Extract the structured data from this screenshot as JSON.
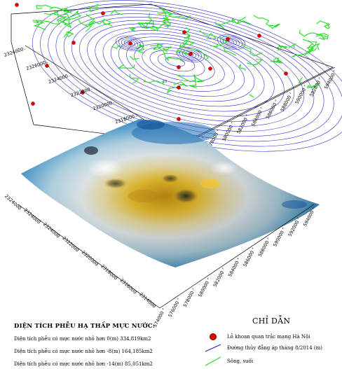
{
  "map": {
    "upper_y_ticks": [
      "2324000",
      "2326000",
      "2324000",
      "2322000",
      "2320000",
      "2318000",
      "2316000",
      "2314000"
    ],
    "upper_x_ticks": [
      "574000",
      "576000",
      "578000",
      "580000",
      "582000",
      "584000",
      "586000",
      "588000",
      "590000",
      "592000",
      "594000"
    ],
    "lower_y_ticks": [
      "2324000",
      "2324000",
      "2324000",
      "2322000",
      "2320000",
      "2318000",
      "2316000",
      "2314000"
    ],
    "lower_x_ticks": [
      "574000",
      "576000",
      "578000",
      "580000",
      "582000",
      "584000",
      "586000",
      "588000",
      "590000",
      "592000",
      "594000"
    ],
    "contour_labels": [
      "-10"
    ],
    "colors": {
      "contour": "#2020c8",
      "rivers": "#22dd22",
      "wells": "#e00000",
      "surface_high": "#1560a8",
      "surface_mid": "#e8f2f6",
      "surface_low": "#f0c030"
    }
  },
  "stats": {
    "title": "DIỆN TÍCH PHỄU HẠ THẤP MỰC NƯỚC:",
    "lines": [
      "Diện tích phễu có mực nước nhỏ hơn 0(m) 334,819km2",
      "Diện tích phễu có mực nước nhỏ hơn -8(m) 164,185km2",
      "Diện tích phễu có mực nước nhỏ hơn -14(m) 85,051km2"
    ]
  },
  "legend": {
    "title": "CHỈ DẪN",
    "items": [
      {
        "label": "Lỗ khoan quan trắc mạng Hà Nội",
        "icon": "red-dot"
      },
      {
        "label": "Đường thủy đẳng áp tháng 8/2014 (m)",
        "icon": "blue-line"
      },
      {
        "label": "Sông, suối",
        "icon": "green-line"
      }
    ]
  }
}
